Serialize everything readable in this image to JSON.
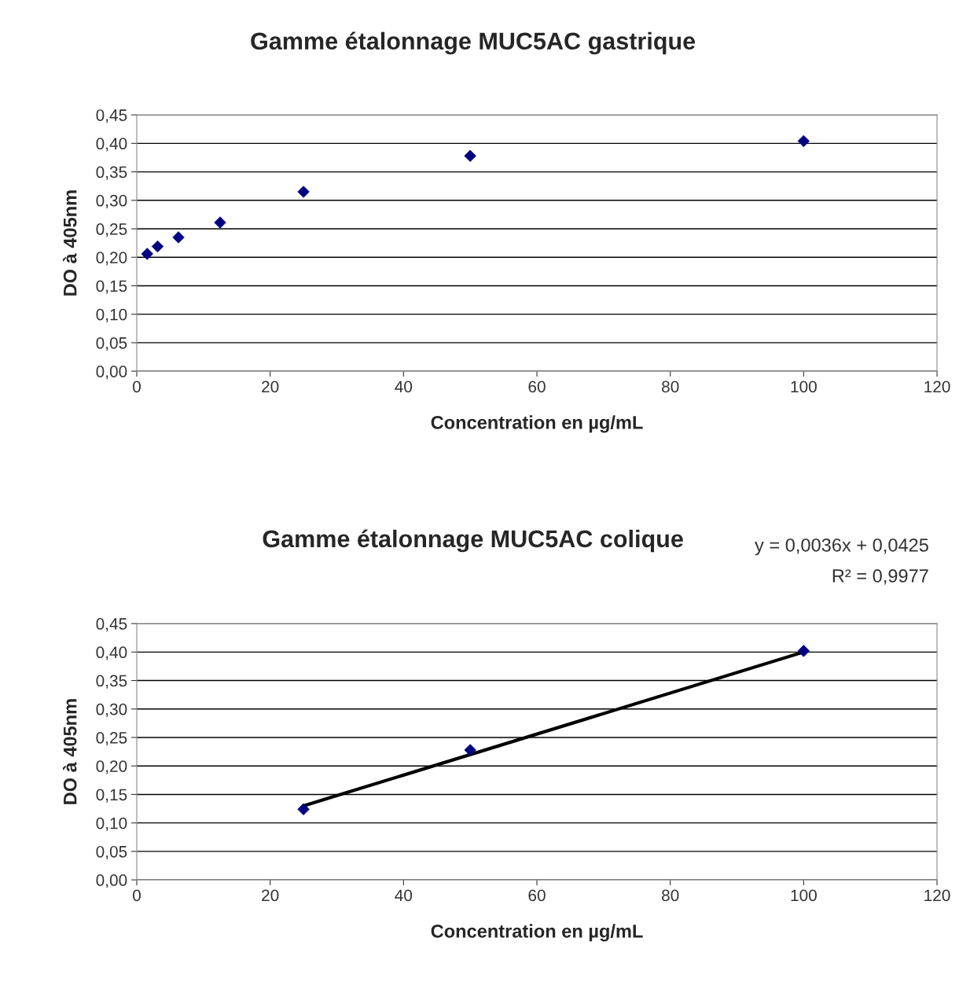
{
  "chart_data": [
    {
      "type": "scatter",
      "title": "Gamme étalonnage MUC5AC gastrique",
      "xlabel": "Concentration en µg/mL",
      "ylabel": "DO à 405nm",
      "series": [
        {
          "color": "#000080",
          "x": [
            1.5625,
            3.125,
            6.25,
            12.5,
            25,
            50,
            100
          ],
          "values": [
            0.206,
            0.219,
            0.235,
            0.261,
            0.315,
            0.378,
            0.404
          ]
        }
      ],
      "xlim": [
        0,
        120
      ],
      "xticks": [
        0,
        20,
        40,
        60,
        80,
        100,
        120
      ],
      "ylim": [
        0,
        0.45
      ],
      "yticks": [
        {
          "value": 0,
          "label": "0,00"
        },
        {
          "value": 0.05,
          "label": "0,05"
        },
        {
          "value": 0.1,
          "label": "0,10"
        },
        {
          "value": 0.15,
          "label": "0,15"
        },
        {
          "value": 0.2,
          "label": "0,20"
        },
        {
          "value": 0.25,
          "label": "0,25"
        },
        {
          "value": 0.3,
          "label": "0,30"
        },
        {
          "value": 0.35,
          "label": "0,35"
        },
        {
          "value": 0.4,
          "label": "0,40"
        },
        {
          "value": 0.45,
          "label": "0,45"
        }
      ],
      "grid": "y",
      "marker": "diamond",
      "legend": false
    },
    {
      "type": "scatter",
      "title": "Gamme étalonnage MUC5AC colique",
      "xlabel": "Concentration en µg/mL",
      "ylabel": "DO à 405nm",
      "series": [
        {
          "color": "#000080",
          "x": [
            25,
            50,
            100
          ],
          "values": [
            0.124,
            0.228,
            0.402
          ]
        },
        {
          "type": "line",
          "color": "#000000",
          "x": [
            25,
            100
          ],
          "values": [
            0.13,
            0.4
          ],
          "marker": "none"
        }
      ],
      "annotations": [
        "y = 0,0036x + 0,0425",
        "R² = 0,9977"
      ],
      "xlim": [
        0,
        120
      ],
      "xticks": [
        0,
        20,
        40,
        60,
        80,
        100,
        120
      ],
      "ylim": [
        0,
        0.45
      ],
      "yticks": [
        {
          "value": 0,
          "label": "0,00"
        },
        {
          "value": 0.05,
          "label": "0,05"
        },
        {
          "value": 0.1,
          "label": "0,10"
        },
        {
          "value": 0.15,
          "label": "0,15"
        },
        {
          "value": 0.2,
          "label": "0,20"
        },
        {
          "value": 0.25,
          "label": "0,25"
        },
        {
          "value": 0.3,
          "label": "0,30"
        },
        {
          "value": 0.35,
          "label": "0,35"
        },
        {
          "value": 0.4,
          "label": "0,40"
        },
        {
          "value": 0.45,
          "label": "0,45"
        }
      ],
      "grid": "y",
      "marker": "diamond",
      "legend": false
    }
  ]
}
